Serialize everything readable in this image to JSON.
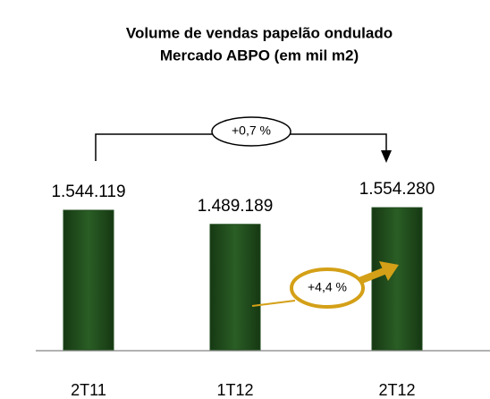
{
  "chart_data": {
    "type": "bar",
    "title": "Volume de vendas papelão ondulado",
    "subtitle": "Mercado ABPO (em mil m2)",
    "categories": [
      "2T11",
      "1T12",
      "2T12"
    ],
    "values": [
      1544119,
      1489189,
      1554280
    ],
    "value_labels": [
      "1.544.119",
      "1.489.189",
      "1.554.280"
    ],
    "color": "#1f4a1c",
    "ylim": [
      1000000,
      1600000
    ],
    "annotations": [
      "+0,7 %",
      "+4,4 %"
    ]
  }
}
